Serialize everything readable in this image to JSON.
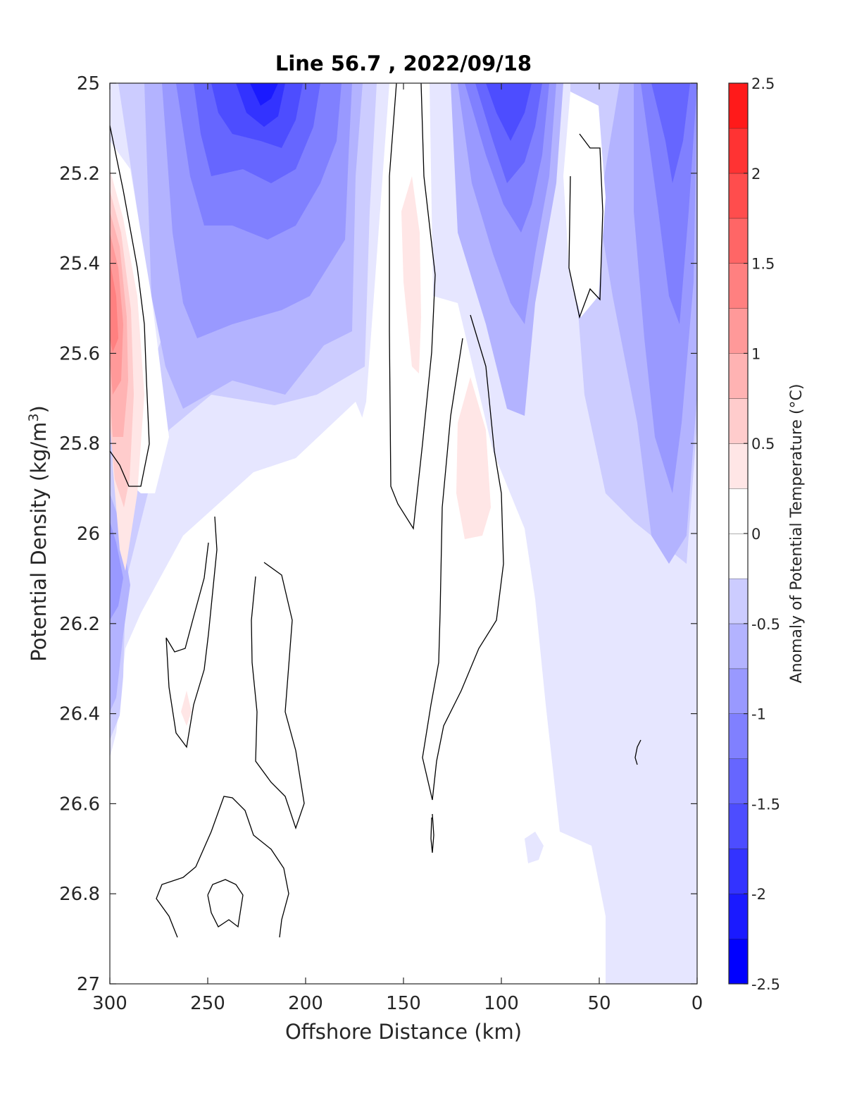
{
  "chart_data": {
    "type": "heatmap",
    "title": "Line 56.7 , 2022/09/18",
    "xlabel": "Offshore Distance (km)",
    "ylabel_main": "Potential Density (kg/m",
    "ylabel_sup": "3",
    "ylabel_close": ")",
    "colorbar_label": "Anomaly of Potential Temperature (°C)",
    "xlim": [
      300,
      0
    ],
    "ylim": [
      25,
      27
    ],
    "x_reversed": true,
    "y_reversed": true,
    "x_ticks": [
      300,
      250,
      200,
      150,
      100,
      50,
      0
    ],
    "x_tick_labels": [
      "300",
      "250",
      "200",
      "150",
      "100",
      "50",
      "0"
    ],
    "y_ticks": [
      25,
      25.2,
      25.4,
      25.6,
      25.8,
      26,
      26.2,
      26.4,
      26.6,
      26.8,
      27
    ],
    "y_tick_labels": [
      "25",
      "25.2",
      "25.4",
      "25.6",
      "25.8",
      "26",
      "26.2",
      "26.4",
      "26.6",
      "26.8",
      "27"
    ],
    "colorbar": {
      "min": -2.5,
      "max": 2.5,
      "step": 0.25,
      "tick_values": [
        2.5,
        2,
        1.5,
        1,
        0.5,
        0,
        -0.5,
        -1,
        -1.5,
        -2,
        -2.5
      ],
      "tick_labels": [
        "2.5",
        "2",
        "1.5",
        "1",
        "0.5",
        "0",
        "-0.5",
        "-1",
        "-1.5",
        "-2",
        "-2.5"
      ],
      "colors": [
        "#0000ff",
        "#1a1aff",
        "#3333ff",
        "#4d4dff",
        "#6666ff",
        "#8080ff",
        "#9999ff",
        "#b3b3ff",
        "#ccccff",
        "#e6e6ff",
        "#ffffff",
        "#ffffff",
        "#ffe6e6",
        "#ffcccc",
        "#ffb3b3",
        "#ff9999",
        "#ff8080",
        "#ff6666",
        "#ff4d4d",
        "#ff3333",
        "#ff1a1a",
        "#ff0000"
      ]
    },
    "grid": false,
    "anomaly_field": {
      "x_km": [
        300,
        270,
        240,
        210,
        180,
        160,
        145,
        130,
        110,
        95,
        80,
        60,
        40,
        20,
        0
      ],
      "density": [
        25,
        25.2,
        25.4,
        25.6,
        25.8,
        26,
        26.2,
        26.4,
        26.6,
        26.8,
        26.9
      ],
      "values": [
        [
          -0.4,
          -0.6,
          -1.6,
          -2.0,
          -1.2,
          -0.3,
          0.1,
          -0.7,
          -1.1,
          -1.7,
          -1.2,
          0.0,
          -1.0,
          -1.5,
          -1.0
        ],
        [
          0.8,
          -0.4,
          -1.4,
          -1.7,
          -1.1,
          -0.4,
          0.2,
          -0.6,
          -1.0,
          -1.5,
          -1.0,
          0.1,
          -0.9,
          -1.4,
          -0.6
        ],
        [
          1.2,
          -0.3,
          -1.1,
          -1.2,
          -0.9,
          -0.4,
          0.4,
          -0.2,
          -0.8,
          -1.1,
          -0.8,
          0.0,
          -0.7,
          -1.2,
          -0.6
        ],
        [
          1.0,
          0.0,
          -0.8,
          -0.9,
          -0.7,
          -0.3,
          0.3,
          0.0,
          0.1,
          -0.6,
          -0.6,
          -0.3,
          -0.6,
          -1.0,
          -0.7
        ],
        [
          0.5,
          -0.1,
          -0.5,
          -0.5,
          -0.4,
          -0.3,
          0.1,
          0.0,
          0.4,
          -0.4,
          -0.5,
          -0.5,
          -0.6,
          -0.9,
          -0.8
        ],
        [
          -0.9,
          -0.3,
          -0.3,
          -0.3,
          -0.2,
          0.0,
          0.0,
          0.0,
          0.3,
          0.0,
          -0.3,
          -0.4,
          -0.5,
          -0.7,
          -0.9
        ],
        [
          -0.7,
          -0.2,
          0.0,
          0.0,
          0.0,
          0.0,
          0.0,
          0.0,
          0.1,
          0.0,
          -0.2,
          -0.4,
          -0.4,
          -0.3,
          -0.3
        ],
        [
          -0.6,
          -0.2,
          0.1,
          0.0,
          0.0,
          0.0,
          0.0,
          0.0,
          0.0,
          0.0,
          -0.2,
          -0.3,
          -0.3,
          -0.2,
          0.0
        ],
        [
          -0.3,
          0.0,
          0.0,
          0.0,
          0.0,
          0.0,
          0.0,
          0.0,
          0.0,
          0.0,
          -0.1,
          -0.3,
          -0.3,
          -0.1,
          0.0
        ],
        [
          0.0,
          0.0,
          0.0,
          0.0,
          0.0,
          0.0,
          0.0,
          0.0,
          0.0,
          0.0,
          0.0,
          0.0,
          -0.3,
          0.0,
          0.0
        ],
        [
          0.0,
          0.0,
          0.0,
          0.0,
          0.0,
          0.0,
          0.0,
          0.0,
          0.0,
          0.0,
          0.0,
          -0.3,
          -0.3,
          0.0,
          0.0
        ]
      ]
    }
  }
}
